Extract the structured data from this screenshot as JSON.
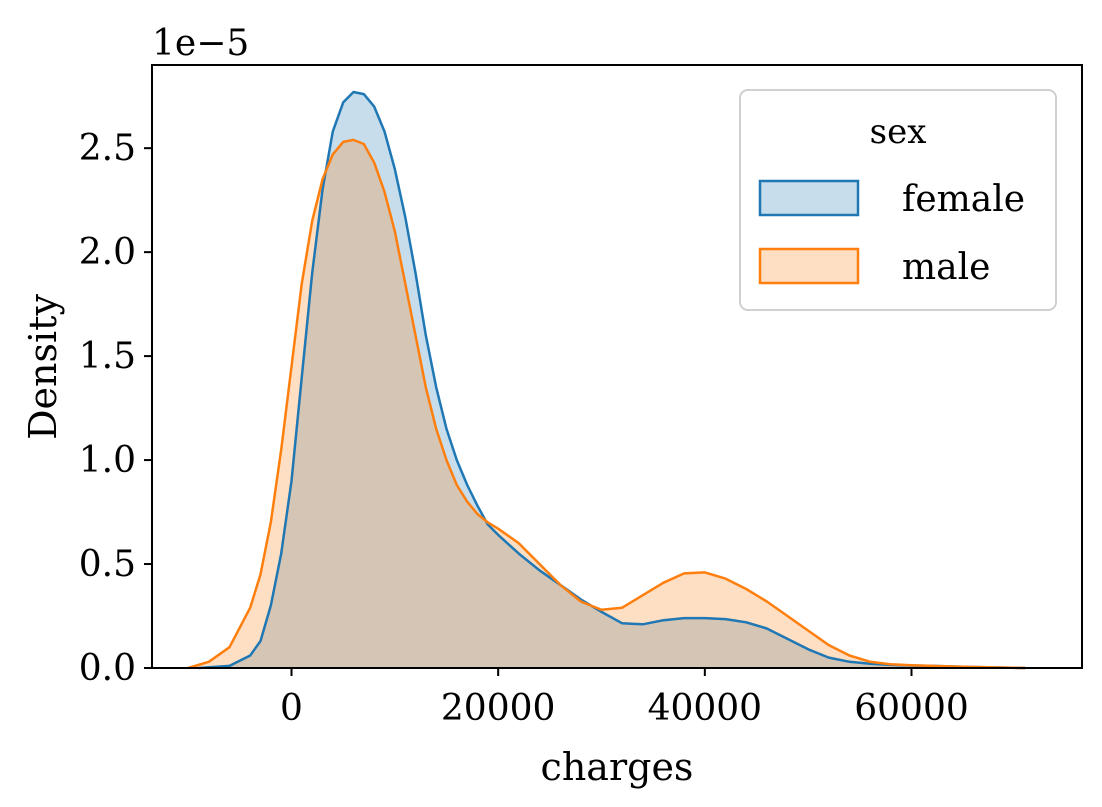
{
  "chart_data": {
    "type": "area",
    "title": "",
    "xlabel": "charges",
    "ylabel": "Density",
    "y_offset_label": "1e−5",
    "y_scale": 1e-05,
    "xlim": [
      -13500,
      76500
    ],
    "ylim": [
      0,
      2.9
    ],
    "xticks": [
      0,
      20000,
      40000,
      60000
    ],
    "xtick_labels": [
      "0",
      "20000",
      "40000",
      "60000"
    ],
    "yticks": [
      0.0,
      0.5,
      1.0,
      1.5,
      2.0,
      2.5
    ],
    "ytick_labels": [
      "0.0",
      "0.5",
      "1.0",
      "1.5",
      "2.0",
      "2.5"
    ],
    "grid": false,
    "legend": {
      "title": "sex",
      "position": "top-right"
    },
    "series": [
      {
        "name": "female",
        "color": "#1f77b4",
        "fill": "#c5daee",
        "points": [
          [
            -9000,
            0.0
          ],
          [
            -6000,
            0.01
          ],
          [
            -4000,
            0.06
          ],
          [
            -3000,
            0.13
          ],
          [
            -2000,
            0.3
          ],
          [
            -1000,
            0.55
          ],
          [
            0,
            0.9
          ],
          [
            1000,
            1.4
          ],
          [
            2000,
            1.9
          ],
          [
            3000,
            2.3
          ],
          [
            4000,
            2.58
          ],
          [
            5000,
            2.72
          ],
          [
            6000,
            2.77
          ],
          [
            7000,
            2.76
          ],
          [
            8000,
            2.7
          ],
          [
            9000,
            2.58
          ],
          [
            10000,
            2.4
          ],
          [
            11000,
            2.17
          ],
          [
            12000,
            1.9
          ],
          [
            13000,
            1.6
          ],
          [
            14000,
            1.35
          ],
          [
            15000,
            1.15
          ],
          [
            16000,
            1.0
          ],
          [
            17000,
            0.88
          ],
          [
            18000,
            0.78
          ],
          [
            19000,
            0.69
          ],
          [
            20000,
            0.64
          ],
          [
            22000,
            0.55
          ],
          [
            24000,
            0.47
          ],
          [
            26000,
            0.4
          ],
          [
            28000,
            0.33
          ],
          [
            30000,
            0.27
          ],
          [
            32000,
            0.215
          ],
          [
            34000,
            0.21
          ],
          [
            36000,
            0.23
          ],
          [
            38000,
            0.24
          ],
          [
            40000,
            0.24
          ],
          [
            42000,
            0.235
          ],
          [
            44000,
            0.22
          ],
          [
            46000,
            0.19
          ],
          [
            48000,
            0.14
          ],
          [
            50000,
            0.09
          ],
          [
            52000,
            0.05
          ],
          [
            54000,
            0.03
          ],
          [
            56000,
            0.02
          ],
          [
            58000,
            0.015
          ],
          [
            60000,
            0.012
          ],
          [
            62000,
            0.01
          ],
          [
            65000,
            0.006
          ],
          [
            68000,
            0.003
          ],
          [
            71000,
            0.0
          ]
        ]
      },
      {
        "name": "male",
        "color": "#ff7f0e",
        "fill": "#ffd9b8",
        "points": [
          [
            -10000,
            0.0
          ],
          [
            -8000,
            0.03
          ],
          [
            -6000,
            0.1
          ],
          [
            -4000,
            0.29
          ],
          [
            -3000,
            0.45
          ],
          [
            -2000,
            0.7
          ],
          [
            -1000,
            1.05
          ],
          [
            0,
            1.45
          ],
          [
            1000,
            1.85
          ],
          [
            2000,
            2.15
          ],
          [
            3000,
            2.35
          ],
          [
            4000,
            2.47
          ],
          [
            5000,
            2.53
          ],
          [
            6000,
            2.54
          ],
          [
            7000,
            2.52
          ],
          [
            8000,
            2.43
          ],
          [
            9000,
            2.29
          ],
          [
            10000,
            2.1
          ],
          [
            11000,
            1.85
          ],
          [
            12000,
            1.6
          ],
          [
            13000,
            1.35
          ],
          [
            14000,
            1.15
          ],
          [
            15000,
            1.0
          ],
          [
            16000,
            0.88
          ],
          [
            17000,
            0.8
          ],
          [
            18000,
            0.74
          ],
          [
            19000,
            0.7
          ],
          [
            20000,
            0.67
          ],
          [
            22000,
            0.6
          ],
          [
            24000,
            0.5
          ],
          [
            26000,
            0.4
          ],
          [
            28000,
            0.32
          ],
          [
            30000,
            0.28
          ],
          [
            32000,
            0.29
          ],
          [
            34000,
            0.35
          ],
          [
            36000,
            0.41
          ],
          [
            38000,
            0.455
          ],
          [
            40000,
            0.46
          ],
          [
            42000,
            0.43
          ],
          [
            44000,
            0.38
          ],
          [
            46000,
            0.32
          ],
          [
            48000,
            0.25
          ],
          [
            50000,
            0.18
          ],
          [
            52000,
            0.11
          ],
          [
            54000,
            0.06
          ],
          [
            56000,
            0.03
          ],
          [
            58000,
            0.018
          ],
          [
            60000,
            0.013
          ],
          [
            62000,
            0.01
          ],
          [
            65000,
            0.006
          ],
          [
            68000,
            0.003
          ],
          [
            71000,
            0.0
          ]
        ]
      }
    ]
  }
}
